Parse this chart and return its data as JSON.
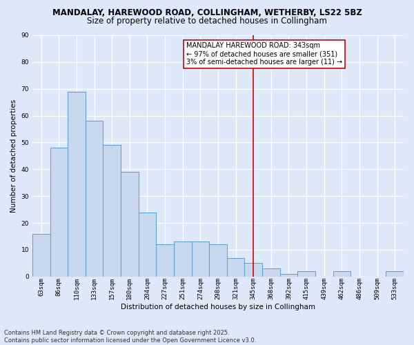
{
  "title_line1": "MANDALAY, HAREWOOD ROAD, COLLINGHAM, WETHERBY, LS22 5BZ",
  "title_line2": "Size of property relative to detached houses in Collingham",
  "xlabel": "Distribution of detached houses by size in Collingham",
  "ylabel": "Number of detached properties",
  "bar_labels": [
    "63sqm",
    "86sqm",
    "110sqm",
    "133sqm",
    "157sqm",
    "180sqm",
    "204sqm",
    "227sqm",
    "251sqm",
    "274sqm",
    "298sqm",
    "321sqm",
    "345sqm",
    "368sqm",
    "392sqm",
    "415sqm",
    "439sqm",
    "462sqm",
    "486sqm",
    "509sqm",
    "533sqm"
  ],
  "bar_values": [
    16,
    48,
    69,
    58,
    49,
    39,
    24,
    12,
    13,
    13,
    12,
    7,
    5,
    3,
    1,
    2,
    0,
    2,
    0,
    0,
    2
  ],
  "bar_color": "#c8d8ef",
  "bar_edge_color": "#5b9bd5",
  "vline_x": 12.5,
  "vline_color": "#cc0000",
  "annotation_title": "MANDALAY HAREWOOD ROAD: 343sqm",
  "annotation_line2": "← 97% of detached houses are smaller (351)",
  "annotation_line3": "3% of semi-detached houses are larger (11) →",
  "ylim": [
    0,
    90
  ],
  "yticks": [
    0,
    10,
    20,
    30,
    40,
    50,
    60,
    70,
    80,
    90
  ],
  "footnote_line1": "Contains HM Land Registry data © Crown copyright and database right 2025.",
  "footnote_line2": "Contains public sector information licensed under the Open Government Licence v3.0.",
  "bg_color": "#dde8f8",
  "plot_bg_color": "#dde8f8",
  "grid_color": "white",
  "title_fontsize": 8.5,
  "subtitle_fontsize": 8.5,
  "axis_label_fontsize": 7.5,
  "tick_fontsize": 6.5,
  "annotation_fontsize": 7,
  "footnote_fontsize": 6
}
